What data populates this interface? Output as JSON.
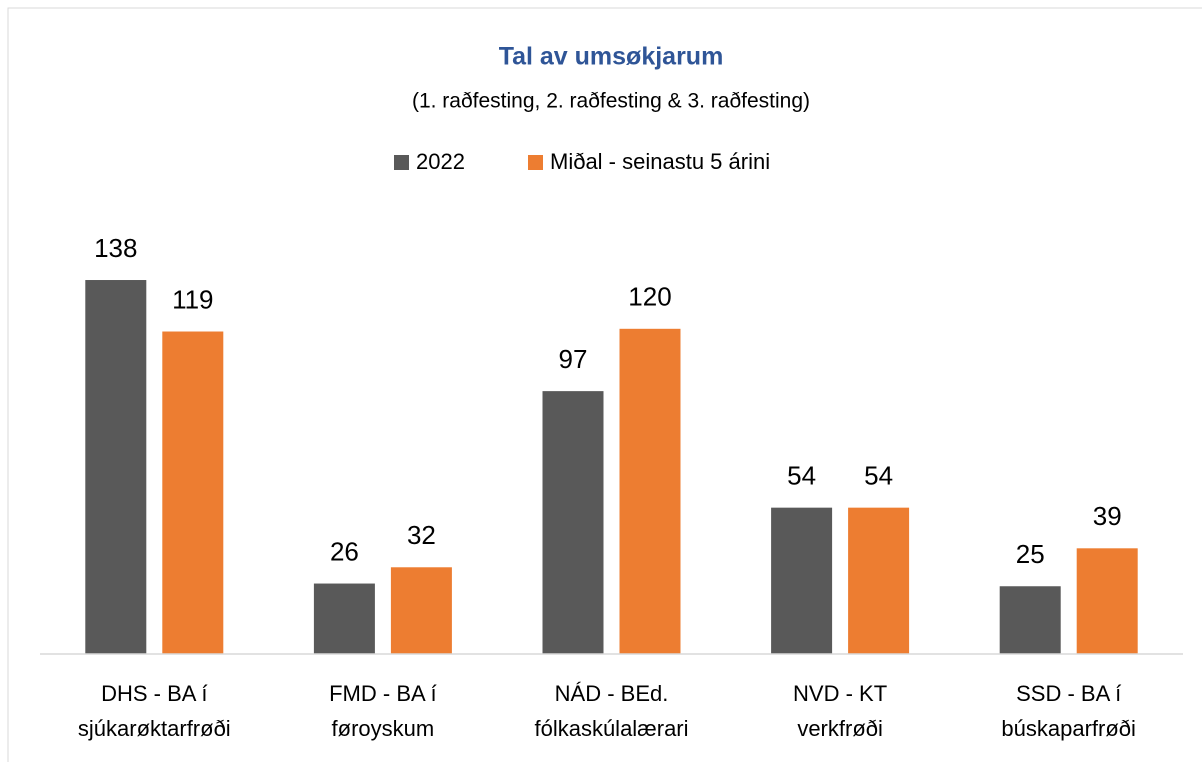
{
  "chart_data": {
    "type": "bar",
    "title": "Tal av umsøkjarum",
    "subtitle": "(1. raðfesting, 2. raðfesting & 3. raðfesting)",
    "categories": [
      "DHS - BA í\nsjúkarøktarfrøði",
      "FMD - BA í\nføroyskum",
      "NÁD - BEd.\nfólkaskúlalærari",
      "NVD - KT\nverkfrøði",
      "SSD - BA í\nbúskaparfrøði"
    ],
    "series": [
      {
        "name": "2022",
        "color": "#595959",
        "values": [
          138,
          26,
          97,
          54,
          25
        ]
      },
      {
        "name": "Miðal - seinastu 5 árini",
        "color": "#ed7d31",
        "values": [
          119,
          32,
          120,
          54,
          39
        ]
      }
    ],
    "ylim": [
      0,
      140
    ],
    "legend": "top"
  }
}
